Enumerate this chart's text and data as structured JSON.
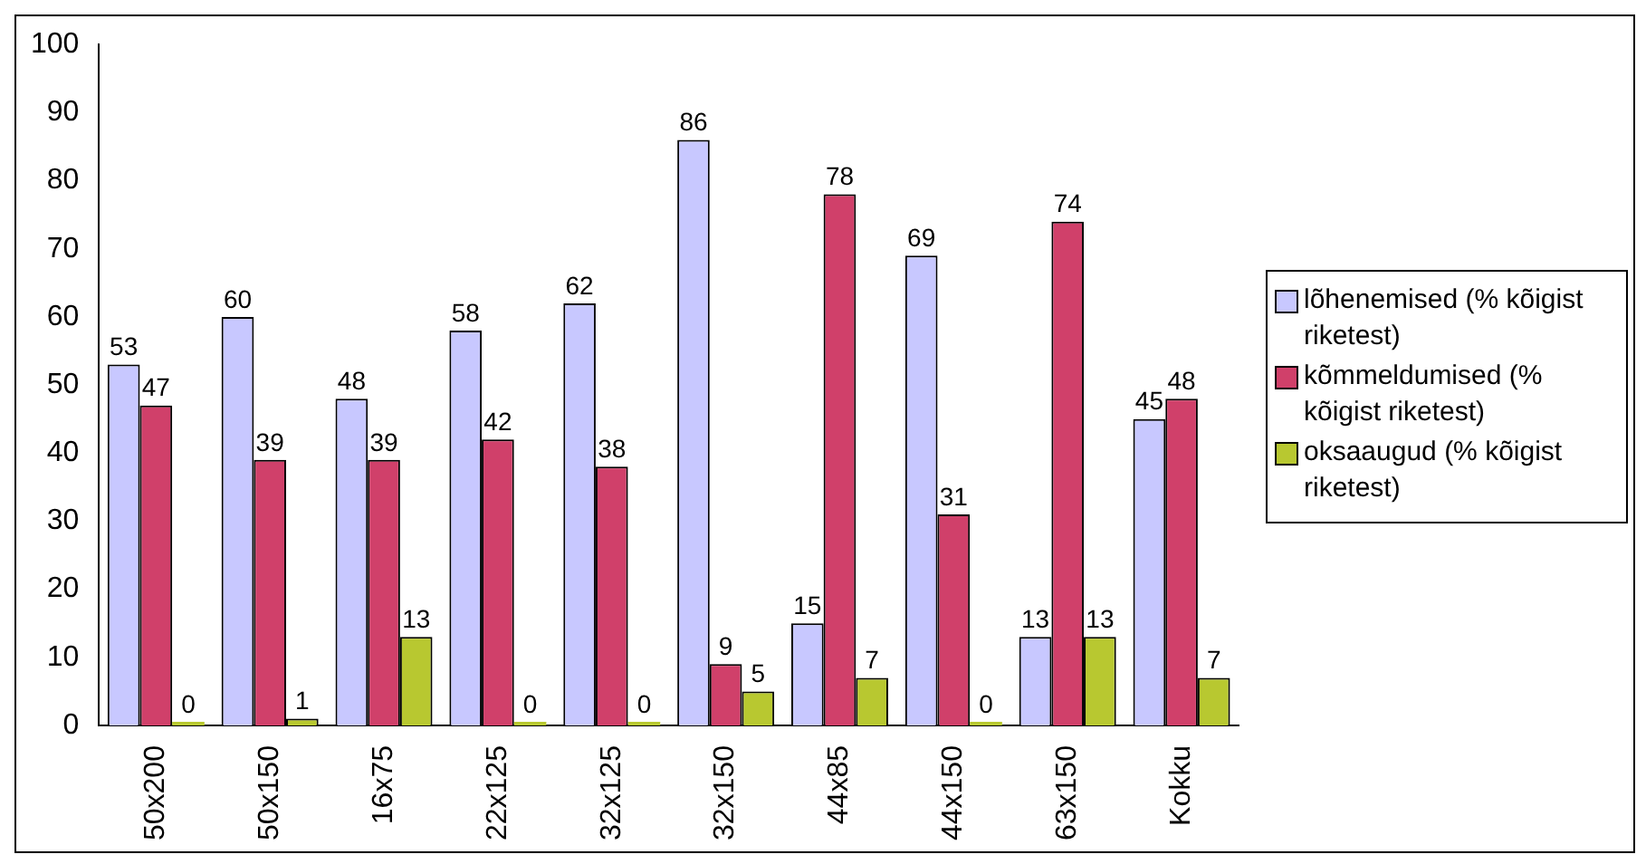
{
  "chart_data": {
    "type": "bar",
    "categories": [
      "50x200",
      "50x150",
      "16x75",
      "22x125",
      "32x125",
      "32x150",
      "44x85",
      "44x150",
      "63x150",
      "Kokku"
    ],
    "series": [
      {
        "name": "lõhenemised (% kõigist riketest)",
        "color": "#c8c8ff",
        "values": [
          53,
          60,
          48,
          58,
          62,
          86,
          15,
          69,
          13,
          45
        ]
      },
      {
        "name": "kõmmeldumised (% kõigist riketest)",
        "color": "#d0406a",
        "values": [
          47,
          39,
          39,
          42,
          38,
          9,
          78,
          31,
          74,
          48
        ]
      },
      {
        "name": "oksaaugud (% kõigist riketest)",
        "color": "#b8c830",
        "values": [
          0,
          1,
          13,
          0,
          0,
          5,
          7,
          0,
          13,
          7
        ]
      }
    ],
    "ylim": [
      0,
      100
    ],
    "yticks": [
      0,
      10,
      20,
      30,
      40,
      50,
      60,
      70,
      80,
      90,
      100
    ],
    "grid": false,
    "legend": "right",
    "data_labels": true
  }
}
